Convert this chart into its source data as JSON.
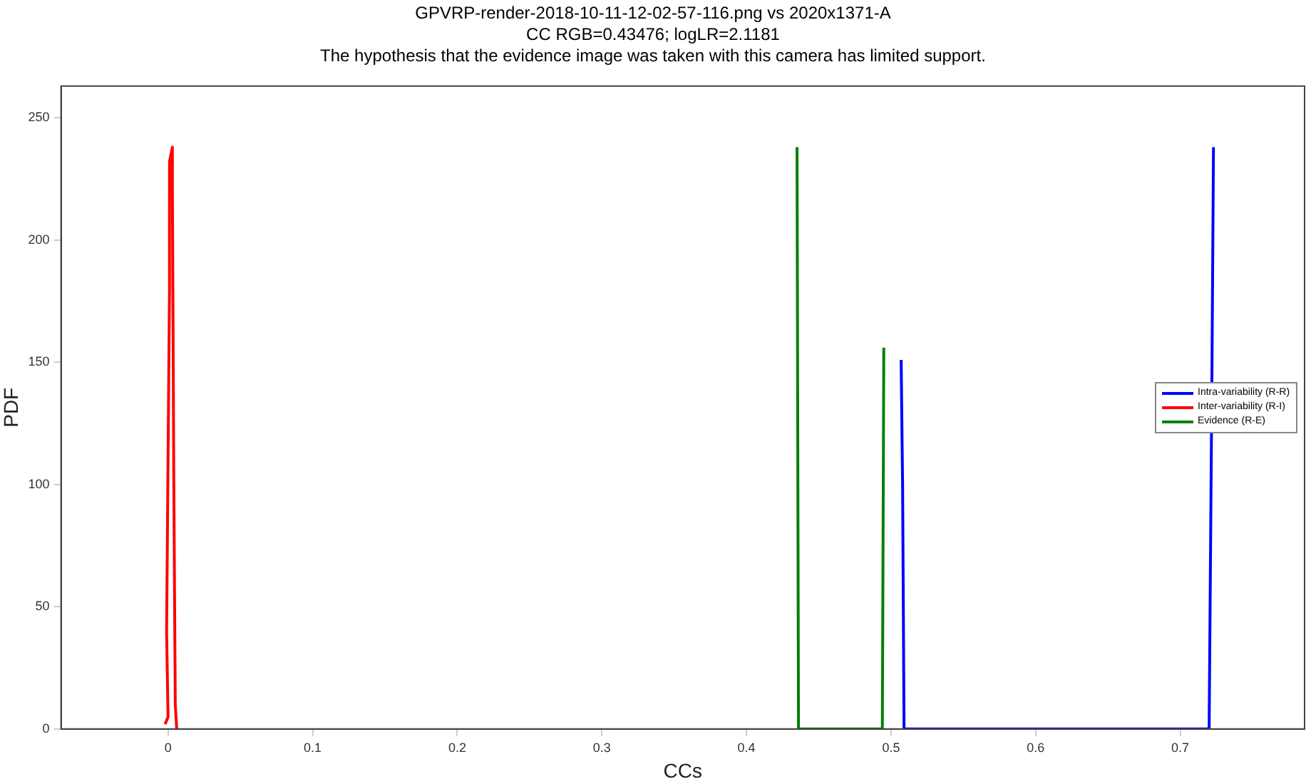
{
  "chart_data": {
    "type": "line",
    "title": "GPVRP-render-2018-10-11-12-02-57-116.png vs 2020x1371-A",
    "subtitle": "CC RGB=0.43476; logLR=2.1181",
    "annotations": [
      "The hypothesis that the evidence image was taken with this camera has limited support."
    ],
    "xlabel": "CCs",
    "ylabel": "PDF",
    "series": [
      {
        "name": "Intra-variability (R-R)",
        "color": "#0000ff",
        "x": [
          0.507,
          0.508,
          0.509,
          0.72,
          0.722,
          0.723
        ],
        "values": [
          151,
          100,
          0,
          0,
          150,
          238
        ]
      },
      {
        "name": "Inter-variability (R-I)",
        "color": "#ff0000",
        "x": [
          -0.002,
          0,
          -0.001,
          0.001,
          0.001,
          0.003,
          0.003,
          0.004,
          0.005,
          0.006
        ],
        "values": [
          2,
          5,
          40,
          180,
          232,
          238,
          220,
          100,
          10,
          0
        ]
      },
      {
        "name": "Evidence (R-E)",
        "color": "#008000",
        "x": [
          0.435,
          0.436,
          0.494,
          0.495
        ],
        "values": [
          238,
          0,
          0,
          156
        ]
      }
    ],
    "xlim": [
      -0.074,
      0.786
    ],
    "xticks": [
      0,
      0.1,
      0.2,
      0.3,
      0.4,
      0.5,
      0.6,
      0.7
    ],
    "ylim": [
      0,
      263
    ],
    "yticks": [
      0,
      50,
      100,
      150,
      200,
      250
    ],
    "grid": false,
    "legend": "right",
    "marker": "none",
    "line_style": "solid"
  }
}
